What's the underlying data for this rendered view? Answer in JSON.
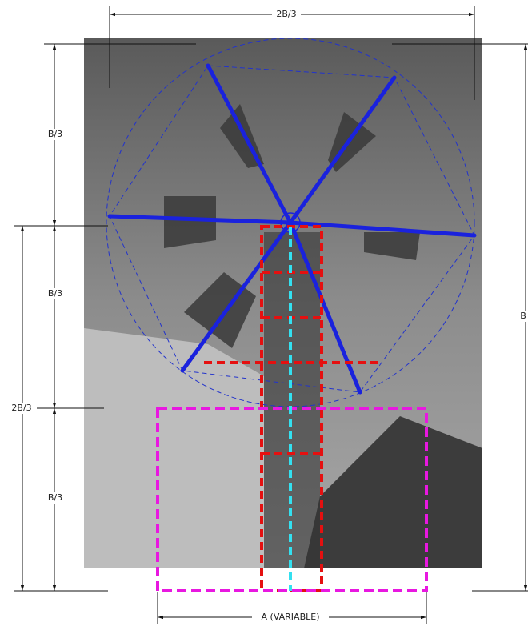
{
  "dimensions": {
    "top": "2B/3",
    "left_upper": "B/3",
    "left_middle": "B/3",
    "left_lower": "B/3",
    "left_outer": "2B/3",
    "right": "B",
    "bottom": "A (VARIABLE)"
  }
}
